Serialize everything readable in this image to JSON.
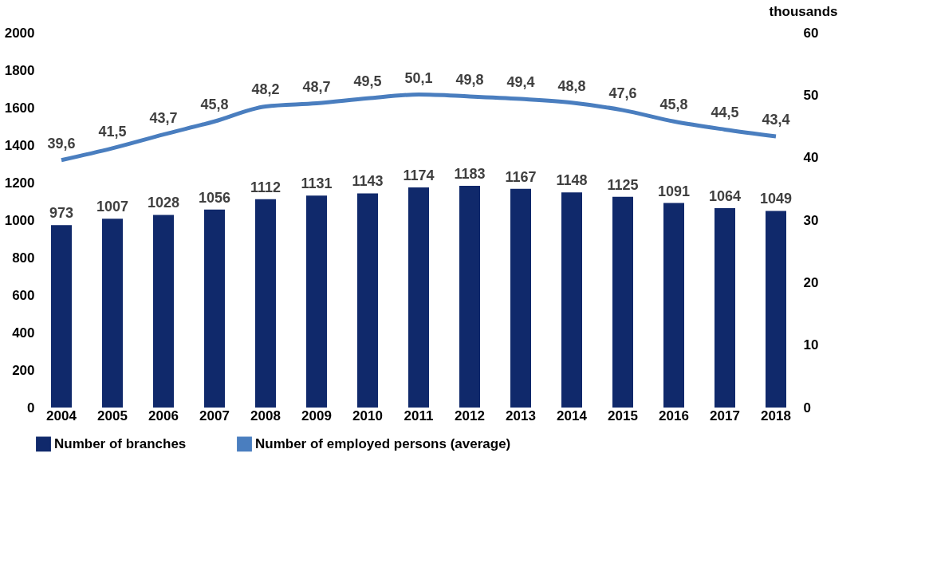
{
  "chart_data": {
    "type": "bar",
    "categories": [
      "2004",
      "2005",
      "2006",
      "2007",
      "2008",
      "2009",
      "2010",
      "2011",
      "2012",
      "2013",
      "2014",
      "2015",
      "2016",
      "2017",
      "2018"
    ],
    "series": [
      {
        "name": "Number of branches",
        "color": "#10296b",
        "values": [
          973,
          1007,
          1028,
          1056,
          1112,
          1131,
          1143,
          1174,
          1183,
          1167,
          1148,
          1125,
          1091,
          1064,
          1049
        ],
        "value_labels": [
          "973",
          "1007",
          "1028",
          "1056",
          "1112",
          "1131",
          "1143",
          "1174",
          "1183",
          "1167",
          "1148",
          "1125",
          "1091",
          "1064",
          "1049"
        ]
      },
      {
        "name": "Number of employed persons (average)",
        "type": "line",
        "axis": "y2",
        "color": "#4a7ebf",
        "values": [
          39.6,
          41.5,
          43.7,
          45.8,
          48.2,
          48.7,
          49.5,
          50.1,
          49.8,
          49.4,
          48.8,
          47.6,
          45.8,
          44.5,
          43.4
        ],
        "value_labels": [
          "39,6",
          "41,5",
          "43,7",
          "45,8",
          "48,2",
          "48,7",
          "49,5",
          "50,1",
          "49,8",
          "49,4",
          "48,8",
          "47,6",
          "45,8",
          "44,5",
          "43,4"
        ]
      }
    ],
    "ylim": [
      0,
      2000
    ],
    "yticks": [
      0,
      200,
      400,
      600,
      800,
      1000,
      1200,
      1400,
      1600,
      1800,
      2000
    ],
    "y2lim": [
      0,
      60
    ],
    "y2ticks": [
      0,
      10,
      20,
      30,
      40,
      50,
      60
    ],
    "y2label": "thousands",
    "legend": "bottom"
  }
}
